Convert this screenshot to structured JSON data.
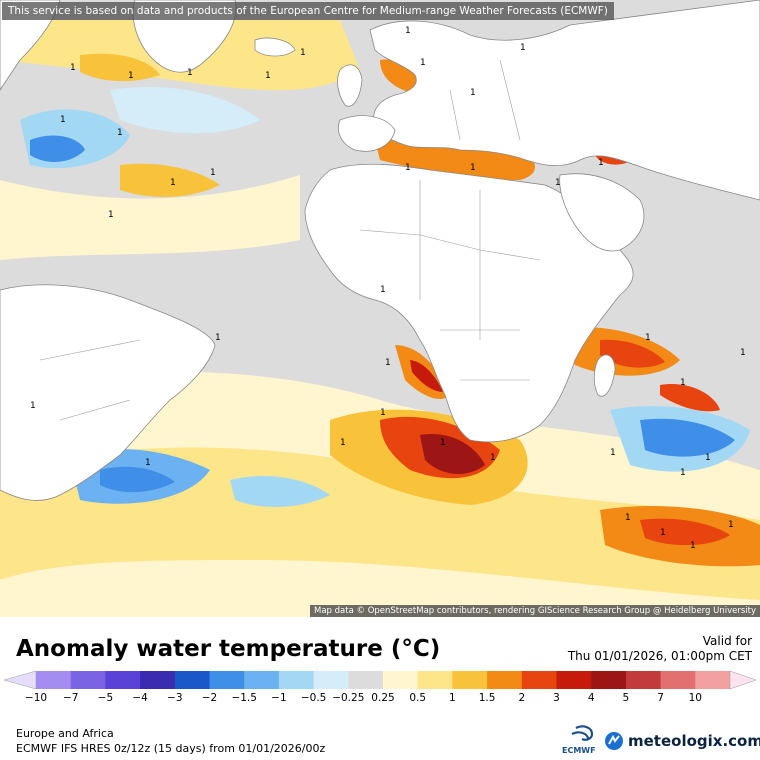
{
  "map": {
    "disclaimer": "This service is based on data and products of the European Centre for Medium-range Weather Forecasts (ECMWF)",
    "attribution": "Map data © OpenStreetMap contributors, rendering GIScience Research Group @ Heidelberg University",
    "contour_label": "1"
  },
  "header": {
    "title": "Anomaly water temperature (°C)",
    "valid_label": "Valid for",
    "valid_time": "Thu 01/01/2026, 01:00pm CET"
  },
  "legend": {
    "ticks": [
      "−10",
      "−7",
      "−5",
      "−4",
      "−3",
      "−2",
      "−1.5",
      "−1",
      "−0.5",
      "−0.25",
      "0.25",
      "0.5",
      "1",
      "1.5",
      "2",
      "3",
      "4",
      "5",
      "7",
      "10"
    ],
    "colors": [
      "#a58cf0",
      "#7b63e6",
      "#5a42d8",
      "#3a2cb0",
      "#1a57c8",
      "#3f8ee8",
      "#6cb2f2",
      "#a3d8f5",
      "#d4edf8",
      "#dcdcdc",
      "#fff6cf",
      "#fde58a",
      "#f8c23a",
      "#f28a15",
      "#e8440f",
      "#c51a0c",
      "#9e1515",
      "#c23a3a",
      "#e27070",
      "#f2a0a0"
    ],
    "end_low_color": "#e6dcfb",
    "end_high_color": "#fbe4f0"
  },
  "footer": {
    "region": "Europe and Africa",
    "model": "ECMWF IFS HRES 0z/12z (15 days) from 01/01/2026/00z",
    "ecmwf_label": "ECMWF",
    "brand": "meteologix.com"
  }
}
